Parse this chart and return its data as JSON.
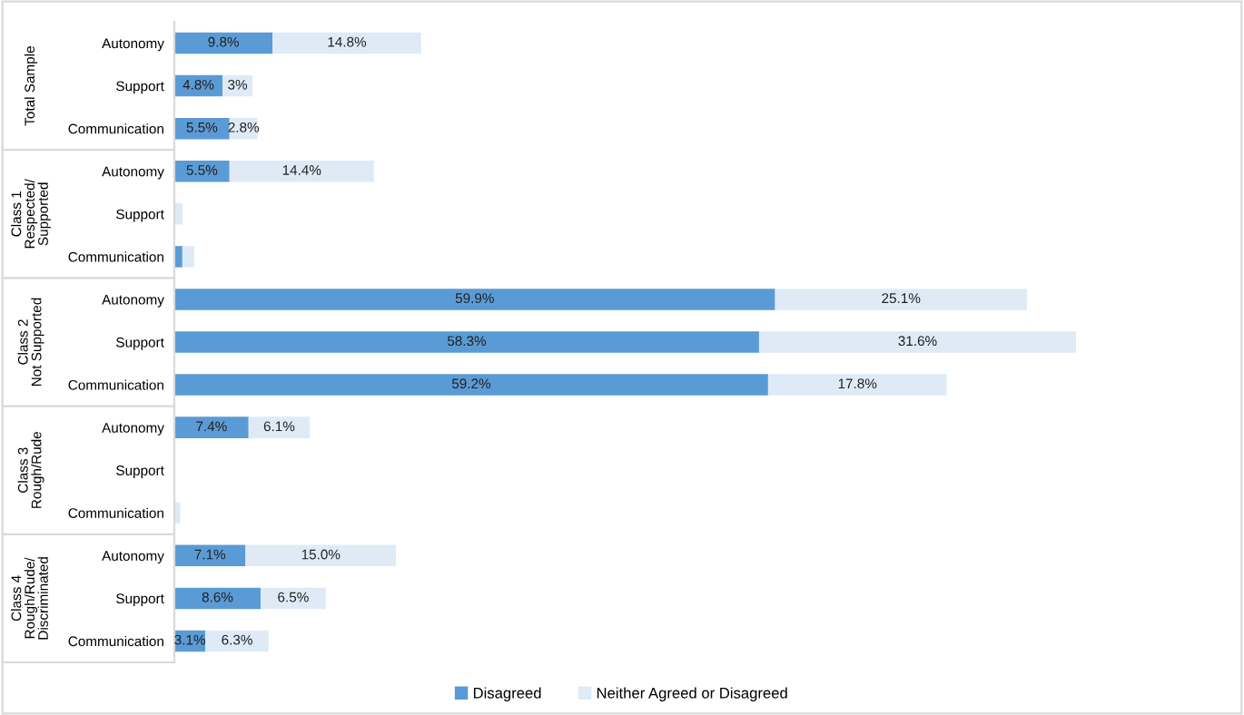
{
  "chart_data": {
    "type": "bar",
    "orientation": "horizontal",
    "stacked": true,
    "legend": "bottom",
    "grid": false,
    "categories": [
      "Autonomy",
      "Support",
      "Communication",
      "Autonomy",
      "Support",
      "Communication",
      "Autonomy",
      "Support",
      "Communication",
      "Autonomy",
      "Support",
      "Communication",
      "Autonomy",
      "Support",
      "Communication"
    ],
    "annotations": [
      "Total Sample",
      "Class 1\nRespected/\nSupported",
      "Class 2\nNot Supported",
      "Class 3\nRough/Rude",
      "Class 4\nRough/Rude/\nDiscriminated"
    ],
    "series": [
      {
        "name": "Disagreed",
        "color": "#5b9bd5",
        "values": [
          9.8,
          4.8,
          5.5,
          5.5,
          0,
          0.8,
          59.9,
          58.3,
          59.2,
          7.4,
          0,
          0,
          7.1,
          8.6,
          3.1
        ],
        "value_labels": [
          "9.8%",
          "4.8%",
          "5.5%",
          "5.5%",
          null,
          null,
          "59.9%",
          "58.3%",
          "59.2%",
          "7.4%",
          null,
          null,
          "7.1%",
          "8.6%",
          "3.1%"
        ]
      },
      {
        "name": "Neither Agreed or Disagreed",
        "color": "#deebf7",
        "values": [
          14.8,
          3,
          2.8,
          14.4,
          0.8,
          1.2,
          25.1,
          31.6,
          17.8,
          6.1,
          0,
          0.6,
          15.0,
          6.5,
          6.3
        ],
        "value_labels": [
          "14.8%",
          "3%",
          "2.8%",
          "14.4%",
          null,
          null,
          "25.1%",
          "31.6%",
          "17.8%",
          "6.1%",
          null,
          null,
          "15.0%",
          "6.5%",
          "6.3%"
        ]
      }
    ]
  }
}
